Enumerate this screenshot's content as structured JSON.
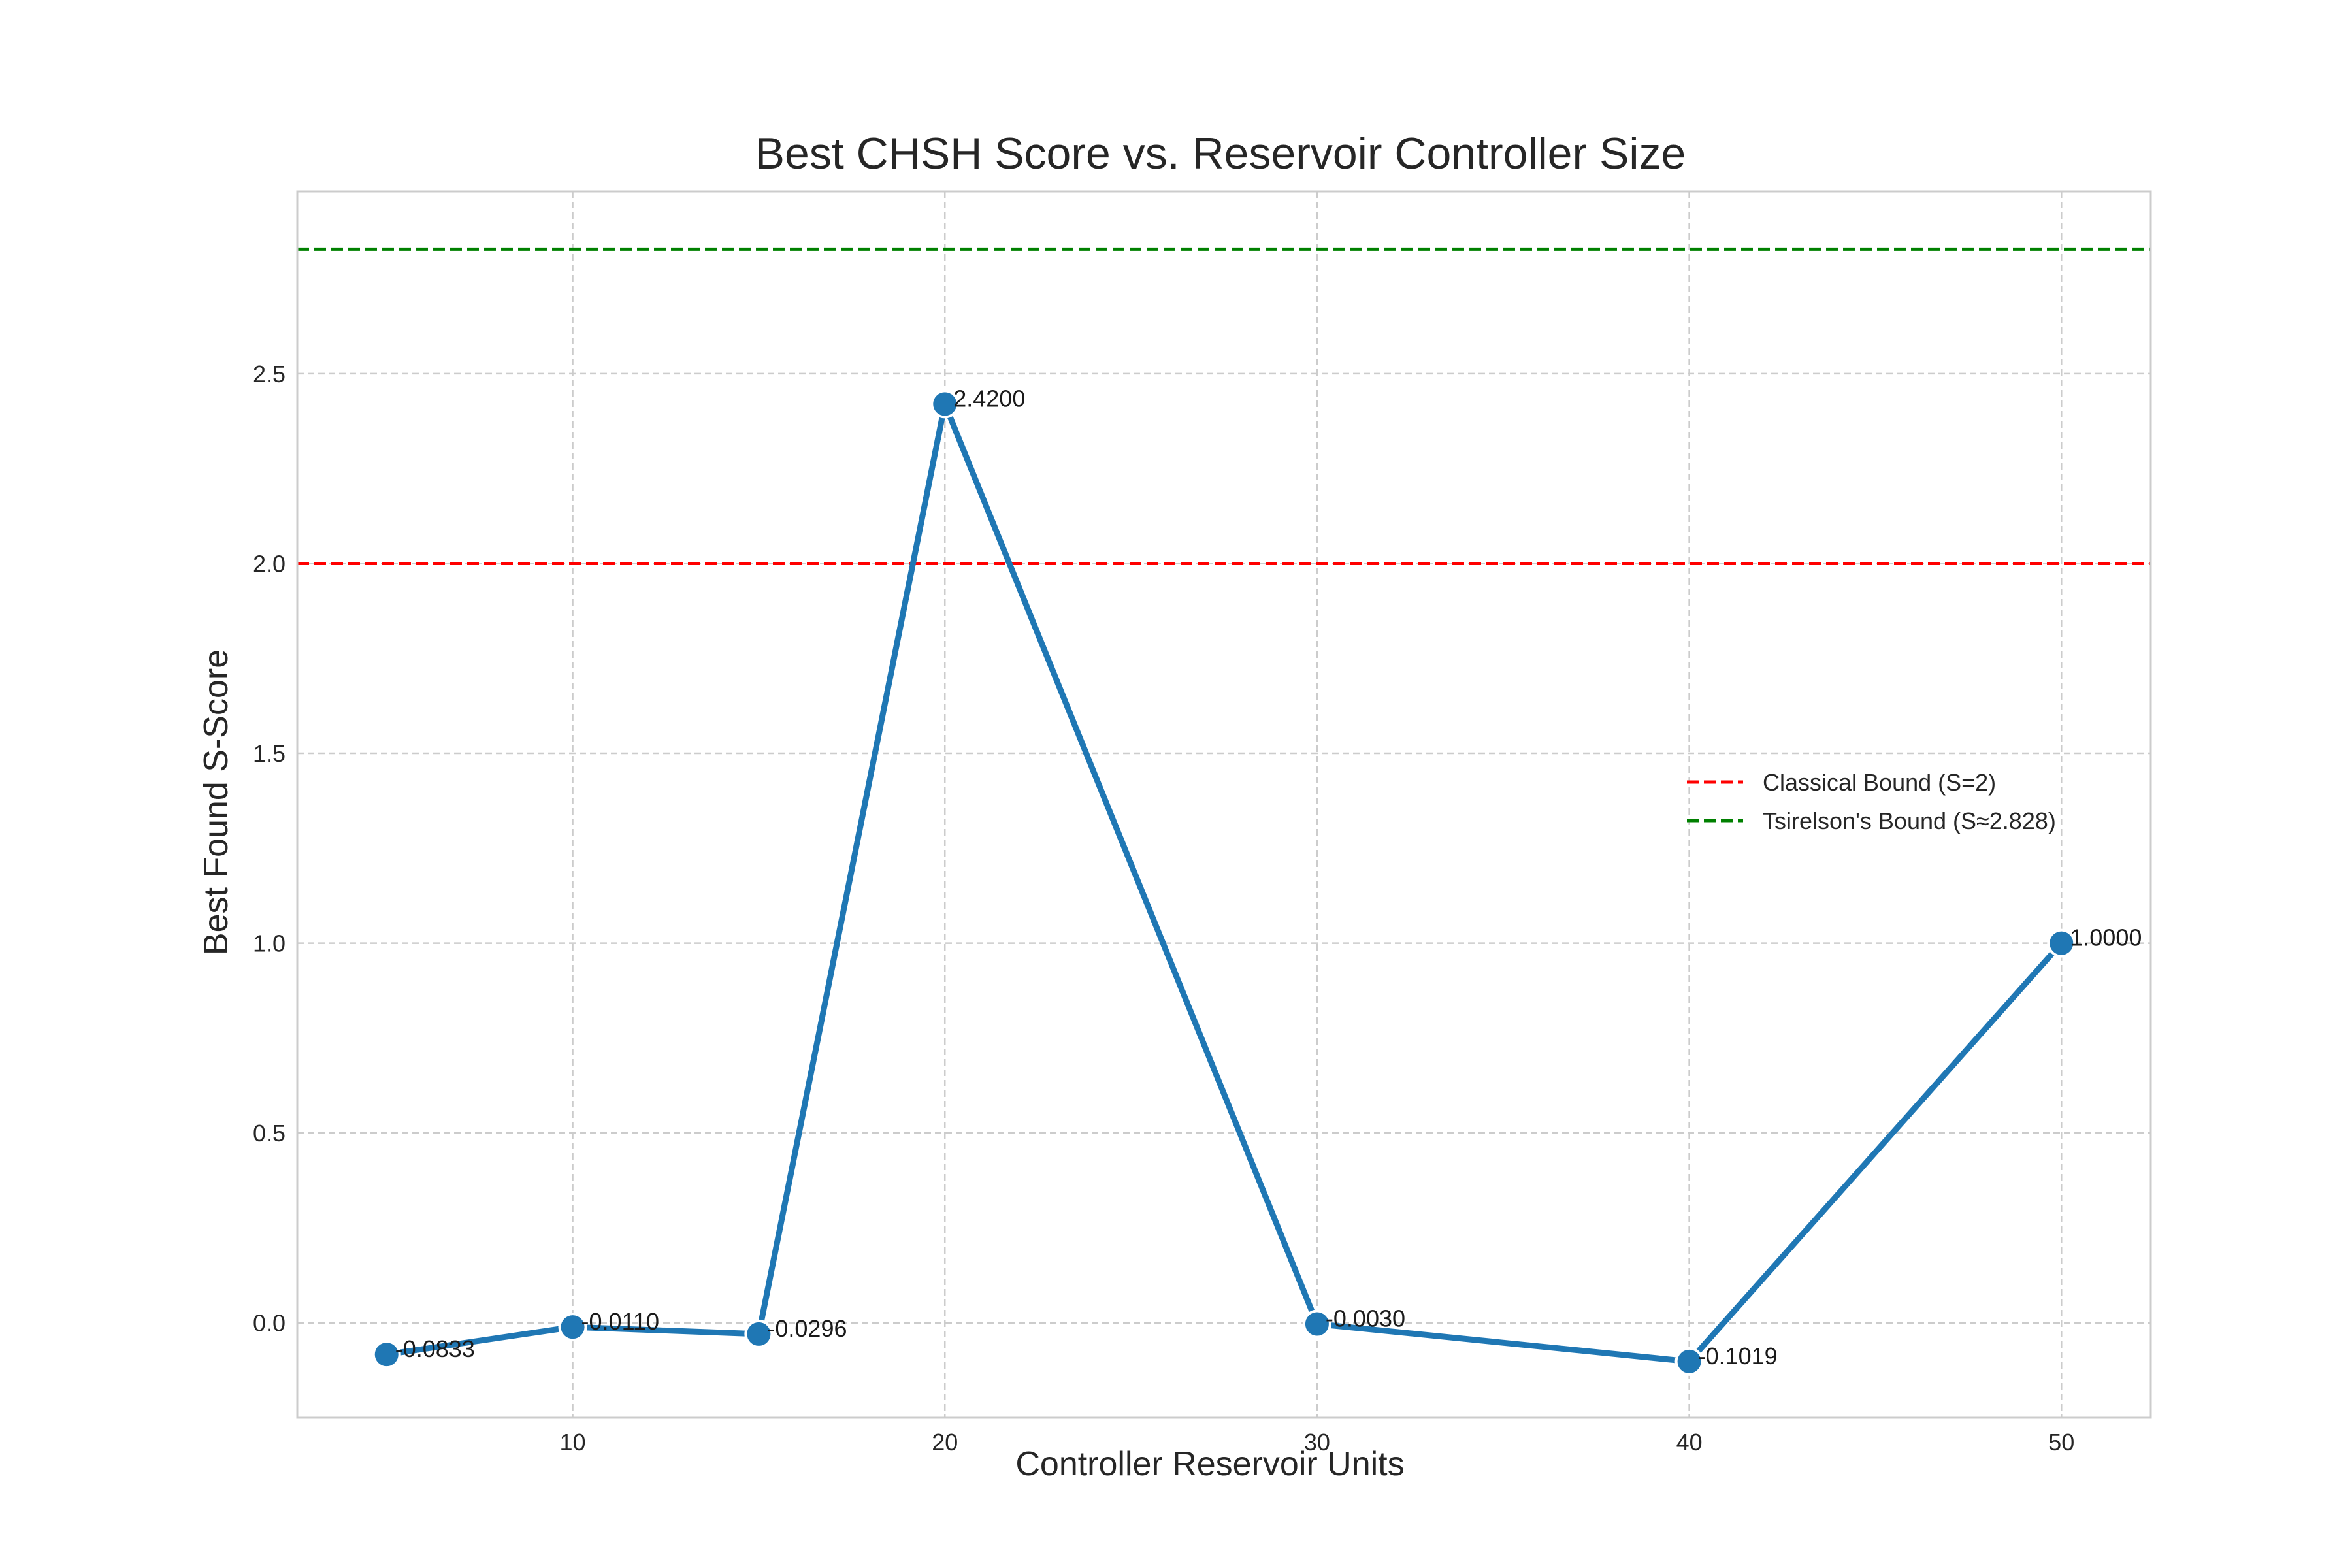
{
  "chart_data": {
    "type": "line",
    "title": "Best CHSH Score vs. Reservoir Controller Size",
    "xlabel": "Controller Reservoir Units",
    "ylabel": "Best Found S-Score",
    "xlim": [
      2.6,
      52.4
    ],
    "ylim": [
      -0.25,
      2.98
    ],
    "x_ticks": [
      10,
      20,
      30,
      40,
      50
    ],
    "y_ticks": [
      0.0,
      0.5,
      1.0,
      1.5,
      2.0,
      2.5
    ],
    "x_tick_labels": [
      "10",
      "20",
      "30",
      "40",
      "50"
    ],
    "y_tick_labels": [
      "0.0",
      "0.5",
      "1.0",
      "1.5",
      "2.0",
      "2.5"
    ],
    "grid": true,
    "legend_position": "center-right",
    "series": [
      {
        "color": "#1f77b4",
        "x": [
          5,
          10,
          15,
          20,
          30,
          40,
          50
        ],
        "y": [
          -0.0833,
          -0.011,
          -0.0296,
          2.42,
          -0.003,
          -0.1019,
          1.0
        ],
        "labels": [
          "-0.0833",
          "-0.0110",
          "-0.0296",
          "2.4200",
          "-0.0030",
          "-0.1019",
          "1.0000"
        ]
      }
    ],
    "reference_lines": [
      {
        "name": "Classical Bound (S=2)",
        "y": 2.0,
        "color": "#ff0000",
        "style": "dashed"
      },
      {
        "name": "Tsirelson's Bound (S≈2.828)",
        "y": 2.828,
        "color": "#008000",
        "style": "dashed"
      }
    ]
  }
}
